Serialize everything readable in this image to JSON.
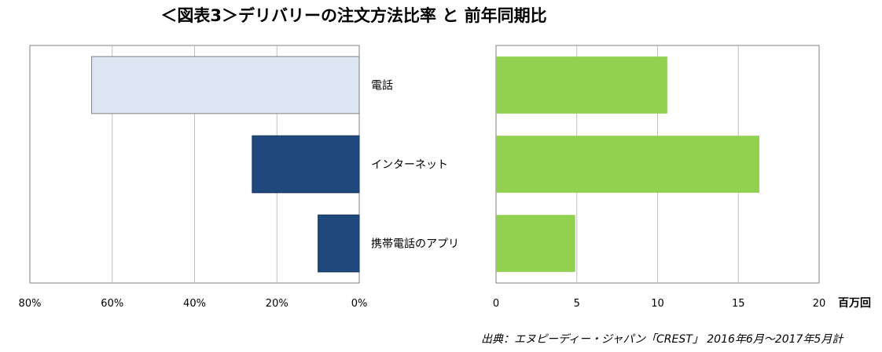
{
  "title": "＜図表3＞デリバリーの注文方法比率 と 前年同期比",
  "source": "出典：エヌピーディー・ジャパン「CREST」 2016年6月～2017年5月計",
  "colors": {
    "phone_bar": "#dce6f2",
    "phone_bar_border": "#808080",
    "internet_bar": "#1f497d",
    "right_bar": "#92d050",
    "grid": "#bfbfbf",
    "axis": "#808080"
  },
  "chart_data": [
    {
      "type": "bar",
      "orientation": "horizontal",
      "direction": "reversed",
      "categories": [
        "電話",
        "インターネット",
        "携帯電話のアプリ"
      ],
      "values": [
        65,
        26,
        10
      ],
      "unit": "%",
      "xlim": [
        0,
        80
      ],
      "xticks": [
        "0%",
        "20%",
        "40%",
        "60%",
        "80%"
      ],
      "grid": true
    },
    {
      "type": "bar",
      "orientation": "horizontal",
      "categories": [
        "電話",
        "インターネット",
        "携帯電話のアプリ"
      ],
      "values": [
        10.6,
        16.3,
        4.9
      ],
      "xlim": [
        0,
        20
      ],
      "xticks": [
        "0",
        "5",
        "10",
        "15",
        "20"
      ],
      "xlabel": "百万回",
      "grid": true
    }
  ]
}
